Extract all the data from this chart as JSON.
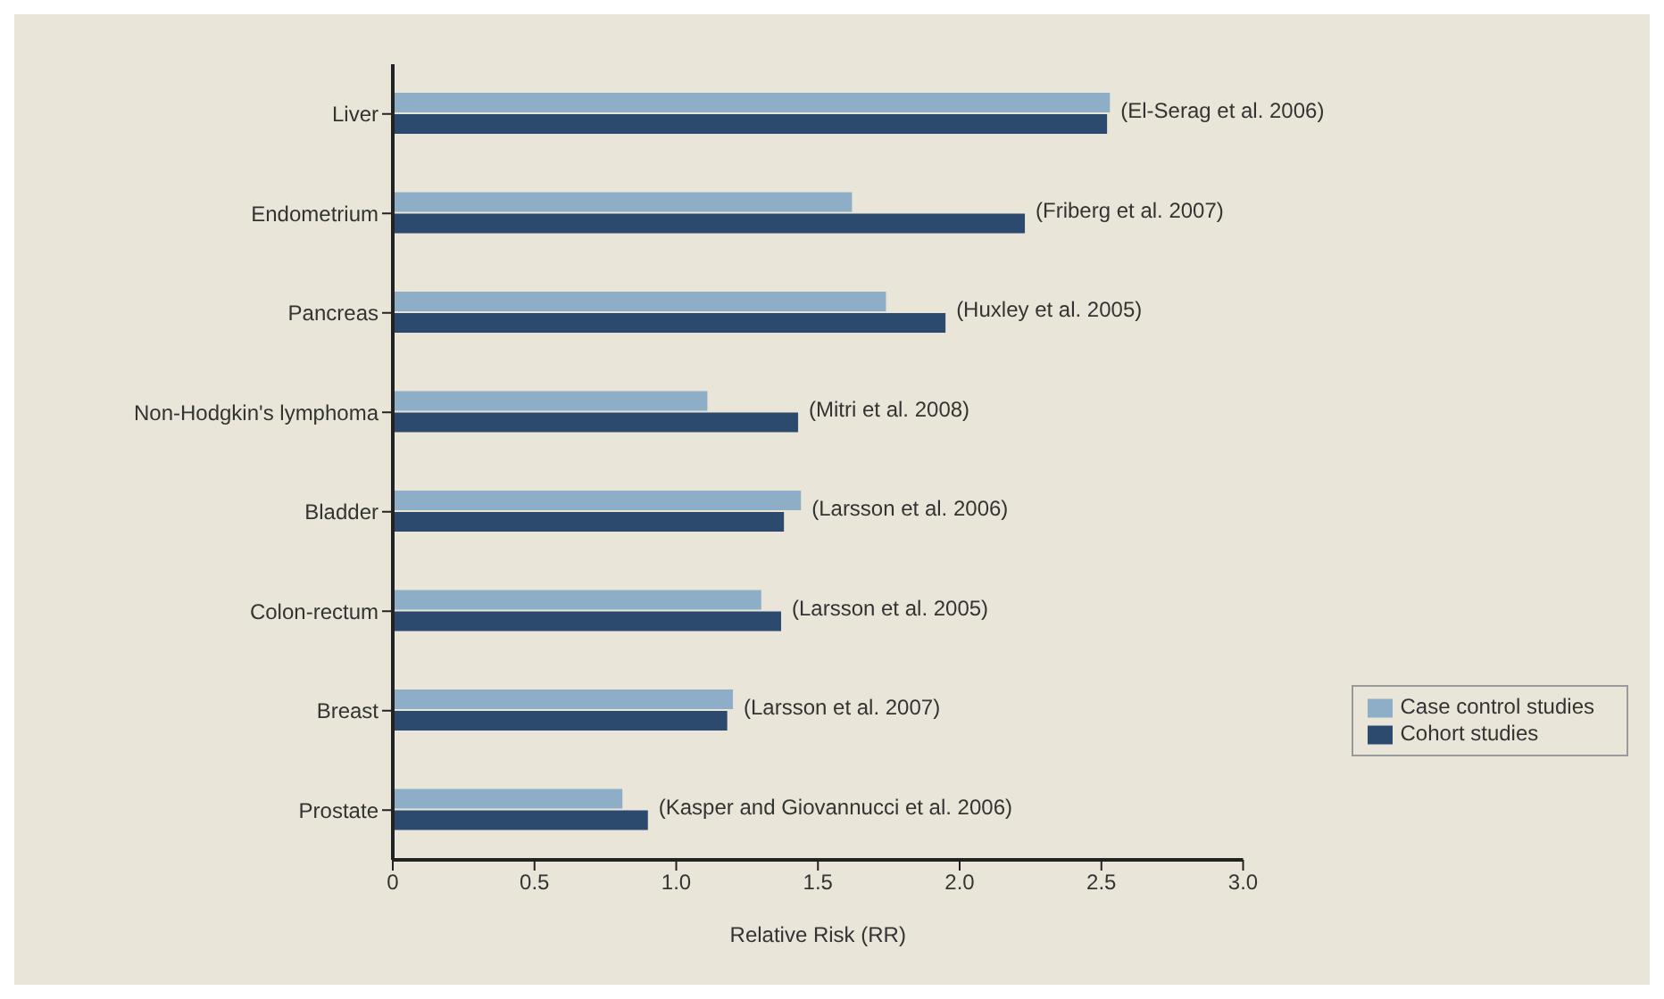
{
  "chart_data": {
    "type": "bar",
    "orientation": "horizontal",
    "xlabel": "Relative Risk (RR)",
    "categories": [
      "Liver",
      "Endometrium",
      "Pancreas",
      "Non-Hodgkin's lymphoma",
      "Bladder",
      "Colon-rectum",
      "Breast",
      "Prostate"
    ],
    "series": [
      {
        "name": "Case control studies",
        "color": "#8eaec8",
        "values": [
          2.53,
          1.62,
          1.74,
          1.11,
          1.44,
          1.3,
          1.2,
          0.81
        ]
      },
      {
        "name": "Cohort studies",
        "color": "#2c4a6e",
        "values": [
          2.52,
          2.23,
          1.95,
          1.43,
          1.38,
          1.37,
          1.18,
          0.9
        ]
      }
    ],
    "xlim": [
      0,
      3
    ],
    "xticks": [
      0,
      {
        "value": 0.5,
        "label": "0.5"
      },
      {
        "value": 1,
        "label": "1.0"
      },
      {
        "value": 1.5,
        "label": "1.5"
      },
      {
        "value": 2,
        "label": "2.0"
      },
      {
        "value": 2.5,
        "label": "2.5"
      },
      {
        "value": 3,
        "label": "3.0"
      }
    ],
    "grid": false,
    "legend": "bottom right",
    "annotations": [
      {
        "text": "(El-Serag et al. 2006)",
        "x": 2.53,
        "y": "Liver"
      },
      {
        "text": "(Friberg et al. 2007)",
        "x": 2.23,
        "y": "Endometrium"
      },
      {
        "text": "(Huxley et al. 2005)",
        "x": 1.95,
        "y": "Pancreas"
      },
      {
        "text": "(Mitri et al. 2008)",
        "x": 1.43,
        "y": "Non-Hodgkin's lymphoma"
      },
      {
        "text": "(Larsson et al. 2006)",
        "x": 1.44,
        "y": "Bladder"
      },
      {
        "text": "(Larsson et al. 2005)",
        "x": 1.37,
        "y": "Colon-rectum"
      },
      {
        "text": "(Larsson et al. 2007)",
        "x": 1.2,
        "y": "Breast"
      },
      {
        "text": "(Kasper and Giovannucci et al. 2006)",
        "x": 0.9,
        "y": "Prostate"
      }
    ]
  }
}
